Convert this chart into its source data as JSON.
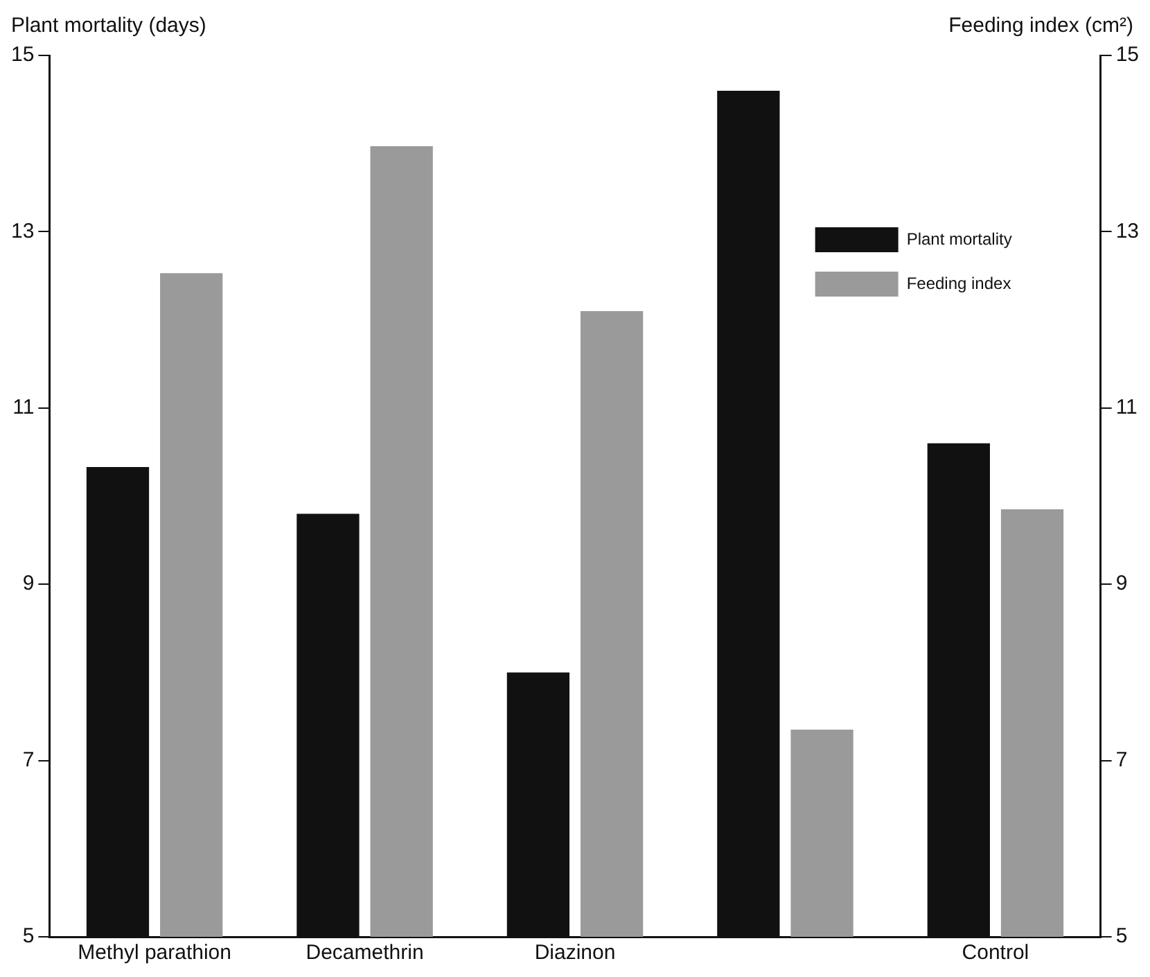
{
  "chart_data": {
    "type": "bar",
    "categories": [
      "Methyl parathion",
      "Decamethrin",
      "Diazinon",
      null,
      "Control"
    ],
    "series": [
      {
        "name": "Plant mortality",
        "color": "#111111",
        "values": [
          10.33,
          9.8,
          8.0,
          14.6,
          10.6
        ]
      },
      {
        "name": "Feeding index",
        "color": "#9a9a9a",
        "values": [
          12.53,
          13.97,
          12.1,
          7.35,
          9.85
        ],
        "axis": "y2"
      }
    ],
    "ylabel": "Plant mortality (days)",
    "y2label": "Feeding index (cm²)",
    "ylim": [
      5,
      15
    ],
    "yticks": [
      5,
      7,
      9,
      11,
      13,
      15
    ],
    "y2lim": [
      5,
      15
    ],
    "y2ticks": [
      5,
      7,
      9,
      11,
      13,
      15
    ],
    "grid": false,
    "legend": "top right"
  }
}
